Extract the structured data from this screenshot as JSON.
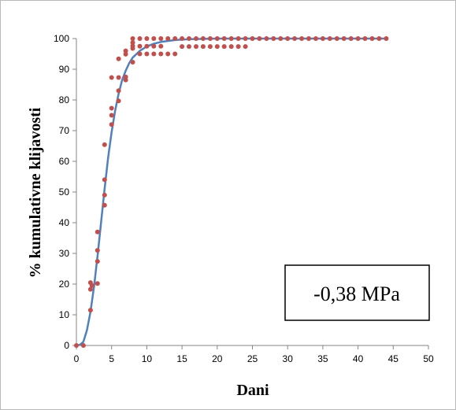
{
  "chart_data": {
    "type": "scatter",
    "title": "",
    "xlabel": "Dani",
    "ylabel": "% kumulativne klijavosti",
    "xlim": [
      0,
      50
    ],
    "ylim": [
      0,
      100
    ],
    "xticks": [
      0,
      5,
      10,
      15,
      20,
      25,
      30,
      35,
      40,
      45,
      50
    ],
    "yticks": [
      0,
      10,
      20,
      30,
      40,
      50,
      60,
      70,
      80,
      90,
      100
    ],
    "grid": false,
    "legend": "none",
    "annotation": "-0,38 MPa",
    "colors": {
      "points": "#c0504d",
      "curve": "#4f81bd"
    },
    "series": [
      {
        "kind": "points",
        "points": [
          [
            0,
            0
          ],
          [
            1,
            0
          ],
          [
            2,
            11.5
          ],
          [
            2,
            18.3
          ],
          [
            2,
            20.5
          ],
          [
            2.2,
            19.5
          ],
          [
            3,
            20.2
          ],
          [
            3,
            27.4
          ],
          [
            3,
            31
          ],
          [
            3,
            37
          ],
          [
            4,
            45.7
          ],
          [
            4,
            49
          ],
          [
            4,
            54
          ],
          [
            4,
            65.4
          ],
          [
            5,
            72
          ],
          [
            5,
            75
          ],
          [
            5,
            77.3
          ],
          [
            5,
            87.3
          ],
          [
            6,
            79.7
          ],
          [
            6,
            83
          ],
          [
            6,
            87.3
          ],
          [
            6,
            93.4
          ],
          [
            7,
            86.5
          ],
          [
            7,
            87.5
          ],
          [
            7,
            94.9
          ],
          [
            7,
            96
          ],
          [
            8,
            92.3
          ],
          [
            8,
            96.8
          ],
          [
            8,
            97.6
          ],
          [
            8,
            98.7
          ],
          [
            8,
            100
          ],
          [
            9,
            95
          ],
          [
            9,
            97.5
          ],
          [
            9,
            100
          ],
          [
            10,
            95
          ],
          [
            10,
            97.5
          ],
          [
            10,
            100
          ],
          [
            11,
            95
          ],
          [
            11,
            97.5
          ],
          [
            11,
            100
          ],
          [
            12,
            95
          ],
          [
            12,
            97.5
          ],
          [
            12,
            100
          ],
          [
            13,
            95
          ],
          [
            13,
            100
          ],
          [
            14,
            95
          ],
          [
            14,
            100
          ],
          [
            15,
            97.4
          ],
          [
            15,
            100
          ],
          [
            16,
            97.4
          ],
          [
            16,
            100
          ],
          [
            17,
            97.4
          ],
          [
            17,
            100
          ],
          [
            18,
            97.4
          ],
          [
            18,
            100
          ],
          [
            19,
            97.4
          ],
          [
            19,
            100
          ],
          [
            20,
            97.4
          ],
          [
            20,
            100
          ],
          [
            21,
            97.4
          ],
          [
            21,
            100
          ],
          [
            22,
            97.4
          ],
          [
            22,
            100
          ],
          [
            23,
            97.4
          ],
          [
            23,
            100
          ],
          [
            24,
            97.4
          ],
          [
            24,
            100
          ],
          [
            25,
            100
          ],
          [
            26,
            100
          ],
          [
            27,
            100
          ],
          [
            28,
            100
          ],
          [
            29,
            100
          ],
          [
            30,
            100
          ],
          [
            31,
            100
          ],
          [
            32,
            100
          ],
          [
            33,
            100
          ],
          [
            34,
            100
          ],
          [
            35,
            100
          ],
          [
            36,
            100
          ],
          [
            37,
            100
          ],
          [
            38,
            100
          ],
          [
            39,
            100
          ],
          [
            40,
            100
          ],
          [
            41,
            100
          ],
          [
            42,
            100
          ],
          [
            43,
            100
          ],
          [
            44,
            100
          ]
        ]
      },
      {
        "kind": "fitted-curve",
        "points": [
          [
            0,
            0
          ],
          [
            0.5,
            0.2
          ],
          [
            1,
            1.2
          ],
          [
            1.5,
            5
          ],
          [
            2,
            11
          ],
          [
            2.5,
            19
          ],
          [
            3,
            29
          ],
          [
            3.5,
            40
          ],
          [
            4,
            51
          ],
          [
            4.5,
            61
          ],
          [
            5,
            69.5
          ],
          [
            5.5,
            76.5
          ],
          [
            6,
            82
          ],
          [
            6.5,
            86.5
          ],
          [
            7,
            89.5
          ],
          [
            7.5,
            92
          ],
          [
            8,
            93.8
          ],
          [
            9,
            96
          ],
          [
            10,
            97.4
          ],
          [
            11,
            98.3
          ],
          [
            12,
            98.9
          ],
          [
            14,
            99.5
          ],
          [
            16,
            99.8
          ],
          [
            18,
            99.9
          ],
          [
            20,
            100
          ],
          [
            25,
            100
          ],
          [
            30,
            100
          ],
          [
            35,
            100
          ],
          [
            40,
            100
          ],
          [
            44,
            100
          ]
        ]
      }
    ]
  }
}
